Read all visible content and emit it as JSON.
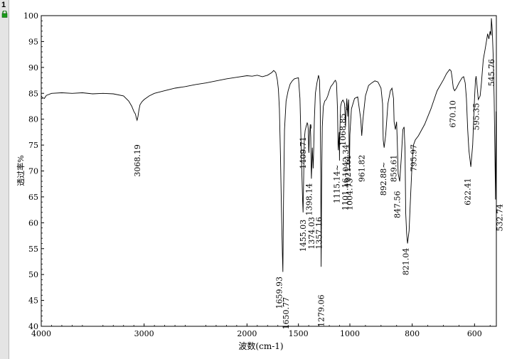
{
  "sidebar": {
    "tab_number": "1",
    "lock_icon": "lock-icon",
    "lock_color": "#1a9c1a"
  },
  "chart_data": {
    "type": "line",
    "title": "",
    "xlabel": "波数(cm-1)",
    "ylabel": "透过率%",
    "xlim": [
      4000,
      530
    ],
    "ylim": [
      40,
      100
    ],
    "x_reversed": true,
    "grid": false,
    "x_ticks": [
      4000,
      3000,
      2000,
      1000,
      800,
      600
    ],
    "x_tick_labels": [
      "4000",
      "3000",
      "2000",
      "1000",
      "800",
      "600"
    ],
    "x_ticks_unlabeled": [
      1500
    ],
    "x_tick_labels_extra": [
      "1500"
    ],
    "y_ticks": [
      40,
      45,
      50,
      55,
      60,
      65,
      70,
      75,
      80,
      85,
      90,
      95,
      100
    ],
    "y_tick_labels": [
      "40",
      "45",
      "50",
      "55",
      "60",
      "65",
      "70",
      "75",
      "80",
      "85",
      "90",
      "95",
      "100"
    ],
    "line_color": "#000000",
    "series": [
      {
        "x": [
          4000,
          3990,
          3970,
          3950,
          3900,
          3800,
          3700,
          3600,
          3500,
          3400,
          3300,
          3200,
          3150,
          3120,
          3100,
          3085,
          3075,
          3068,
          3060,
          3050,
          3040,
          3020,
          3000,
          2950,
          2900,
          2800,
          2700,
          2600,
          2500,
          2400,
          2300,
          2200,
          2100,
          2000,
          1950,
          1900,
          1850,
          1800,
          1760,
          1740,
          1720,
          1705,
          1695,
          1685,
          1675,
          1665,
          1660,
          1655,
          1651,
          1645,
          1635,
          1620,
          1600,
          1580,
          1560,
          1540,
          1520,
          1500,
          1485,
          1470,
          1460,
          1455,
          1450,
          1443,
          1435,
          1425,
          1415,
          1410,
          1405,
          1400,
          1398,
          1394,
          1385,
          1380,
          1376,
          1374,
          1370,
          1365,
          1360,
          1357,
          1352,
          1345,
          1335,
          1320,
          1305,
          1295,
          1288,
          1283,
          1279,
          1275,
          1268,
          1258,
          1245,
          1230,
          1215,
          1200,
          1185,
          1165,
          1150,
          1140,
          1130,
          1120,
          1115,
          1112,
          1108,
          1103,
          1101,
          1098,
          1090,
          1080,
          1068,
          1060,
          1052,
          1045,
          1042,
          1038,
          1030,
          1025,
          1021,
          1017,
          1012,
          1008,
          1004,
          1000,
          995,
          985,
          975,
          965,
          962,
          958,
          950,
          940,
          930,
          920,
          910,
          900,
          895,
          893,
          890,
          885,
          878,
          870,
          865,
          860,
          858,
          854,
          850,
          848,
          845,
          840,
          835,
          830,
          826,
          823,
          821,
          818,
          815,
          810,
          805,
          800,
          796,
          790,
          780,
          760,
          740,
          720,
          700,
          690,
          680,
          675,
          672,
          670,
          668,
          664,
          658,
          650,
          640,
          635,
          630,
          626,
          622,
          618,
          612,
          606,
          600,
          597,
          595,
          592,
          588,
          582,
          578,
          572,
          566,
          562,
          558,
          554,
          550,
          547,
          546,
          545,
          543,
          540,
          537,
          535,
          533,
          532.7,
          531
        ],
        "y": [
          84.5,
          84.2,
          84.0,
          84.6,
          85.0,
          85.1,
          85.0,
          85.1,
          84.9,
          85.0,
          84.9,
          84.5,
          83.5,
          82.5,
          81.5,
          81.0,
          80.2,
          79.8,
          80.5,
          81.8,
          82.8,
          83.4,
          83.8,
          84.5,
          85.0,
          85.5,
          86.0,
          86.3,
          86.7,
          87.0,
          87.4,
          87.8,
          88.1,
          88.4,
          88.3,
          88.5,
          88.2,
          88.5,
          89.0,
          89.4,
          89.0,
          87.6,
          85.8,
          82.0,
          73.0,
          62.5,
          58.0,
          53.5,
          50.5,
          64.0,
          78.0,
          83.5,
          85.5,
          86.8,
          87.4,
          87.8,
          87.9,
          88.0,
          84.0,
          72.0,
          64.5,
          62.0,
          67.5,
          76.0,
          77.8,
          78.6,
          79.3,
          79.1,
          78.2,
          74.0,
          73.5,
          76.5,
          79.0,
          76.5,
          70.5,
          68.5,
          71.0,
          74.5,
          72.0,
          70.5,
          74.0,
          80.0,
          85.0,
          87.0,
          88.5,
          87.5,
          82.5,
          68.0,
          51.5,
          66.0,
          78.5,
          82.5,
          83.5,
          83.8,
          84.5,
          85.5,
          86.3,
          86.8,
          87.3,
          87.5,
          87.0,
          82.0,
          75.0,
          74.0,
          76.0,
          77.5,
          72.0,
          77.0,
          82.5,
          83.3,
          83.7,
          83.4,
          83.0,
          80.0,
          78.5,
          81.0,
          84.0,
          82.0,
          80.5,
          82.5,
          83.8,
          77.0,
          70.0,
          77.0,
          82.0,
          84.0,
          84.3,
          80.0,
          76.8,
          80.0,
          84.5,
          86.5,
          87.0,
          87.4,
          87.2,
          86.0,
          83.0,
          76.0,
          74.5,
          77.0,
          83.0,
          85.5,
          86.0,
          84.0,
          79.5,
          78.0,
          79.5,
          76.0,
          69.5,
          68.0,
          72.5,
          78.0,
          78.5,
          74.0,
          62.0,
          58.0,
          56.0,
          58.5,
          65.5,
          72.0,
          75.0,
          76.0,
          76.8,
          79.0,
          82.0,
          85.5,
          87.6,
          88.8,
          89.6,
          89.3,
          88.0,
          87.0,
          86.0,
          85.5,
          86.0,
          87.0,
          88.0,
          88.2,
          87.0,
          84.0,
          78.0,
          74.0,
          70.8,
          75.0,
          84.0,
          87.5,
          88.3,
          86.5,
          83.8,
          84.5,
          87.0,
          91.5,
          93.5,
          95.0,
          96.5,
          95.5,
          97.0,
          96.2,
          99.5,
          98.8,
          97.0,
          92.0,
          84.0,
          75.0,
          66.0,
          64.5,
          81.5
        ]
      }
    ],
    "peak_labels": [
      "3068.19",
      "1659.93",
      "1650.77",
      "1455.03",
      "1409.71",
      "1398.14",
      "1374.03",
      "1357.16",
      "1279.06",
      "1115.14~",
      "1101.16",
      "1068.85",
      "1042.34",
      "1021.61",
      "1004.73",
      "961.82",
      "892.88~",
      "859.61",
      "847.56",
      "821.04",
      "795.97",
      "670.10",
      "622.41",
      "595.35",
      "545.76",
      "532.74"
    ]
  }
}
